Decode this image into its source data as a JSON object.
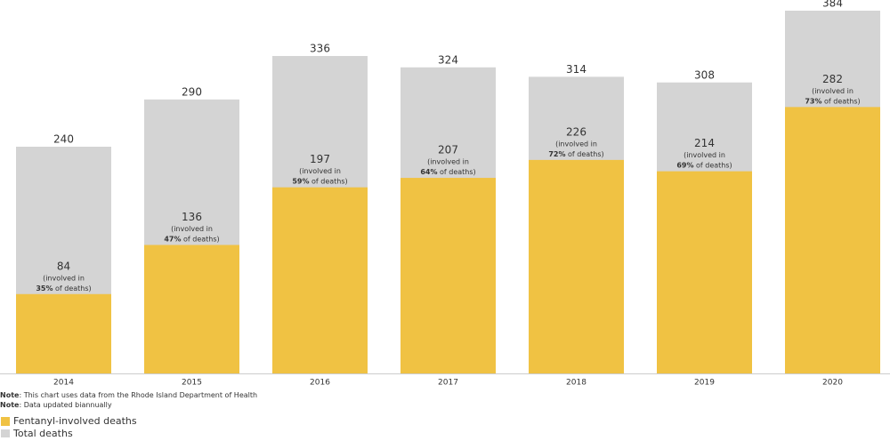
{
  "chart_data": {
    "type": "bar",
    "overlap": true,
    "categories": [
      "2014",
      "2015",
      "2016",
      "2017",
      "2018",
      "2019",
      "2020"
    ],
    "series": [
      {
        "name": "Total deaths",
        "color": "#d4d4d4",
        "values": [
          240,
          290,
          336,
          324,
          314,
          308,
          384
        ]
      },
      {
        "name": "Fentanyl-involved deaths",
        "color": "#f0c243",
        "values": [
          84,
          136,
          197,
          207,
          226,
          214,
          282
        ],
        "percent_labels": [
          "35%",
          "47%",
          "59%",
          "64%",
          "72%",
          "69%",
          "73%"
        ]
      }
    ],
    "annotation_prefix": "(involved in",
    "annotation_suffix": "of deaths)",
    "notes": [
      {
        "label": "Note",
        "text": ": This chart uses data from the Rhode Island Department of Health"
      },
      {
        "label": "Note",
        "text": ": Data updated biannually"
      }
    ]
  }
}
